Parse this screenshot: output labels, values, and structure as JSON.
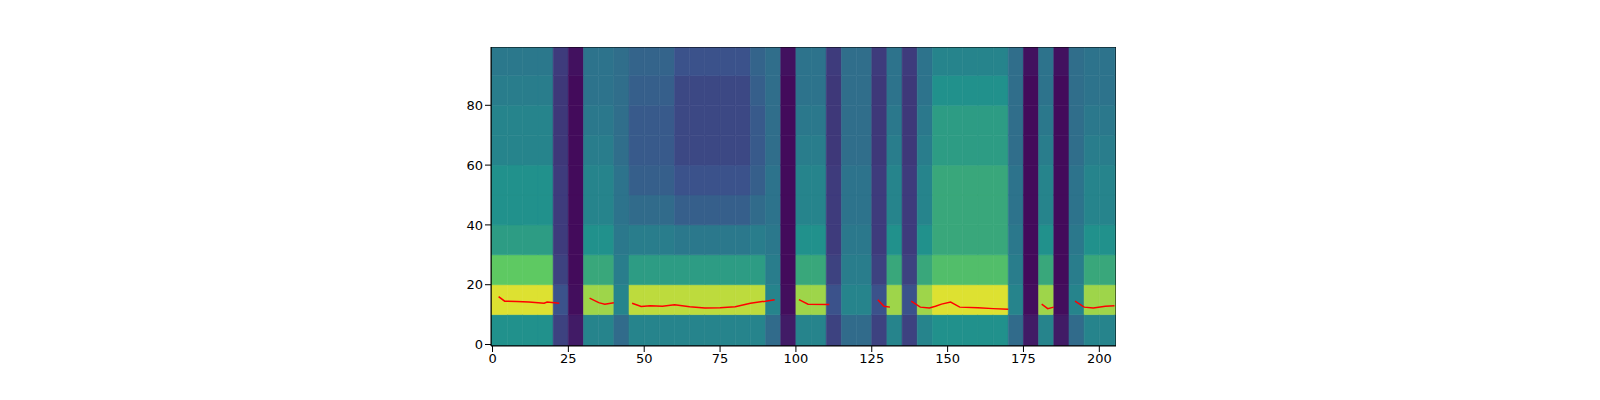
{
  "chart_data": {
    "type": "heatmap",
    "xlim": [
      -0.5,
      205.5
    ],
    "ylim": [
      -0.5,
      99.5
    ],
    "xticks": [
      0,
      25,
      50,
      75,
      100,
      125,
      150,
      175,
      200
    ],
    "yticks": [
      0,
      20,
      40,
      60,
      80
    ],
    "grid": false,
    "heatmap": {
      "x_edges": [
        -0.5,
        5,
        10,
        15,
        20,
        25,
        30,
        35,
        40,
        45,
        50,
        55,
        60,
        65,
        70,
        75,
        80,
        85,
        90,
        95,
        100,
        105,
        110,
        115,
        120,
        125,
        130,
        135,
        140,
        145,
        150,
        155,
        160,
        165,
        170,
        175,
        180,
        185,
        190,
        195,
        200,
        205,
        205.5
      ],
      "y_edges": [
        -0.5,
        10,
        20,
        30,
        40,
        50,
        60,
        70,
        80,
        90,
        99.5
      ],
      "clim": [
        0,
        1
      ],
      "cells": [
        [
          0.5,
          0.95,
          0.75,
          0.55,
          0.5,
          0.5,
          0.45,
          0.45,
          0.42,
          0.4
        ],
        [
          0.5,
          0.95,
          0.75,
          0.55,
          0.5,
          0.5,
          0.45,
          0.45,
          0.42,
          0.4
        ],
        [
          0.5,
          0.95,
          0.75,
          0.55,
          0.5,
          0.5,
          0.45,
          0.45,
          0.42,
          0.4
        ],
        [
          0.5,
          0.95,
          0.75,
          0.55,
          0.5,
          0.5,
          0.45,
          0.45,
          0.42,
          0.4
        ],
        [
          0.2,
          0.25,
          0.2,
          0.18,
          0.18,
          0.18,
          0.17,
          0.17,
          0.17,
          0.18
        ],
        [
          0.08,
          0.04,
          0.03,
          0.03,
          0.03,
          0.03,
          0.03,
          0.03,
          0.03,
          0.05
        ],
        [
          0.45,
          0.85,
          0.6,
          0.5,
          0.45,
          0.45,
          0.42,
          0.4,
          0.38,
          0.38
        ],
        [
          0.45,
          0.85,
          0.6,
          0.5,
          0.45,
          0.45,
          0.42,
          0.4,
          0.38,
          0.38
        ],
        [
          0.35,
          0.45,
          0.42,
          0.4,
          0.38,
          0.38,
          0.36,
          0.36,
          0.36,
          0.36
        ],
        [
          0.45,
          0.9,
          0.55,
          0.42,
          0.35,
          0.3,
          0.28,
          0.28,
          0.3,
          0.32
        ],
        [
          0.45,
          0.9,
          0.55,
          0.42,
          0.35,
          0.3,
          0.28,
          0.28,
          0.3,
          0.32
        ],
        [
          0.45,
          0.9,
          0.55,
          0.42,
          0.35,
          0.3,
          0.28,
          0.28,
          0.3,
          0.32
        ],
        [
          0.45,
          0.9,
          0.55,
          0.4,
          0.3,
          0.25,
          0.22,
          0.22,
          0.22,
          0.25
        ],
        [
          0.45,
          0.9,
          0.55,
          0.4,
          0.3,
          0.25,
          0.22,
          0.22,
          0.22,
          0.25
        ],
        [
          0.45,
          0.9,
          0.55,
          0.4,
          0.3,
          0.25,
          0.22,
          0.22,
          0.22,
          0.25
        ],
        [
          0.45,
          0.9,
          0.55,
          0.4,
          0.3,
          0.25,
          0.22,
          0.22,
          0.22,
          0.25
        ],
        [
          0.45,
          0.9,
          0.55,
          0.4,
          0.3,
          0.25,
          0.22,
          0.22,
          0.22,
          0.25
        ],
        [
          0.45,
          0.9,
          0.55,
          0.42,
          0.35,
          0.3,
          0.28,
          0.28,
          0.3,
          0.32
        ],
        [
          0.35,
          0.45,
          0.42,
          0.4,
          0.38,
          0.38,
          0.36,
          0.36,
          0.36,
          0.36
        ],
        [
          0.08,
          0.04,
          0.03,
          0.03,
          0.03,
          0.03,
          0.03,
          0.03,
          0.03,
          0.05
        ],
        [
          0.45,
          0.85,
          0.6,
          0.5,
          0.45,
          0.45,
          0.42,
          0.4,
          0.38,
          0.38
        ],
        [
          0.45,
          0.85,
          0.6,
          0.5,
          0.45,
          0.45,
          0.42,
          0.4,
          0.38,
          0.38
        ],
        [
          0.2,
          0.25,
          0.2,
          0.18,
          0.18,
          0.18,
          0.17,
          0.17,
          0.17,
          0.18
        ],
        [
          0.35,
          0.45,
          0.42,
          0.4,
          0.38,
          0.38,
          0.36,
          0.36,
          0.36,
          0.36
        ],
        [
          0.35,
          0.45,
          0.42,
          0.4,
          0.38,
          0.38,
          0.36,
          0.36,
          0.36,
          0.36
        ],
        [
          0.2,
          0.25,
          0.2,
          0.18,
          0.18,
          0.18,
          0.17,
          0.17,
          0.17,
          0.18
        ],
        [
          0.45,
          0.85,
          0.6,
          0.5,
          0.45,
          0.45,
          0.42,
          0.4,
          0.38,
          0.38
        ],
        [
          0.2,
          0.25,
          0.2,
          0.18,
          0.18,
          0.18,
          0.17,
          0.17,
          0.17,
          0.18
        ],
        [
          0.45,
          0.85,
          0.6,
          0.5,
          0.45,
          0.45,
          0.42,
          0.4,
          0.38,
          0.38
        ],
        [
          0.5,
          0.95,
          0.7,
          0.6,
          0.6,
          0.6,
          0.55,
          0.55,
          0.5,
          0.45
        ],
        [
          0.5,
          0.95,
          0.7,
          0.6,
          0.6,
          0.6,
          0.55,
          0.55,
          0.5,
          0.45
        ],
        [
          0.5,
          0.95,
          0.7,
          0.6,
          0.6,
          0.6,
          0.55,
          0.55,
          0.5,
          0.45
        ],
        [
          0.5,
          0.95,
          0.7,
          0.6,
          0.6,
          0.6,
          0.55,
          0.55,
          0.5,
          0.45
        ],
        [
          0.5,
          0.95,
          0.7,
          0.6,
          0.6,
          0.6,
          0.55,
          0.55,
          0.5,
          0.45
        ],
        [
          0.35,
          0.45,
          0.42,
          0.4,
          0.38,
          0.38,
          0.36,
          0.36,
          0.36,
          0.36
        ],
        [
          0.08,
          0.04,
          0.03,
          0.03,
          0.03,
          0.03,
          0.03,
          0.03,
          0.03,
          0.05
        ],
        [
          0.45,
          0.85,
          0.6,
          0.5,
          0.45,
          0.45,
          0.42,
          0.4,
          0.38,
          0.38
        ],
        [
          0.08,
          0.04,
          0.03,
          0.03,
          0.03,
          0.03,
          0.03,
          0.03,
          0.03,
          0.05
        ],
        [
          0.35,
          0.45,
          0.42,
          0.4,
          0.38,
          0.38,
          0.36,
          0.36,
          0.36,
          0.36
        ],
        [
          0.45,
          0.85,
          0.6,
          0.5,
          0.45,
          0.45,
          0.42,
          0.4,
          0.38,
          0.38
        ],
        [
          0.45,
          0.85,
          0.6,
          0.5,
          0.45,
          0.45,
          0.42,
          0.4,
          0.38,
          0.38
        ],
        [
          0.45,
          0.85,
          0.6,
          0.5,
          0.45,
          0.45,
          0.42,
          0.4,
          0.38,
          0.38
        ]
      ]
    },
    "x": [
      2,
      4,
      8,
      12,
      17,
      18,
      22,
      27,
      32,
      35,
      37,
      40,
      43,
      46,
      49,
      52,
      56,
      60,
      65,
      70,
      75,
      80,
      85,
      90,
      93,
      97,
      101,
      104,
      111,
      119,
      127,
      129,
      131,
      134,
      138,
      141,
      144,
      146,
      148,
      151,
      154,
      160,
      165,
      170,
      176,
      181,
      183,
      185,
      188,
      192,
      195,
      198,
      202,
      205
    ],
    "series": [
      {
        "type": "line",
        "color": "#ff0000",
        "values": [
          16,
          14.5,
          14.4,
          14.2,
          13.8,
          14.2,
          13.8,
          null,
          15.5,
          14,
          13.5,
          14,
          null,
          13.8,
          12.7,
          13,
          12.8,
          13.3,
          12.6,
          12.2,
          12.3,
          12.6,
          13.8,
          14.5,
          15,
          null,
          15,
          13.5,
          13.4,
          null,
          15,
          12.8,
          12.5,
          null,
          14.5,
          12.5,
          12.2,
          12.8,
          13.5,
          14.2,
          12.5,
          12.3,
          12,
          11.8,
          null,
          13.5,
          12,
          12.5,
          null,
          14.5,
          12.5,
          12.2,
          12.8,
          13
        ]
      }
    ]
  }
}
